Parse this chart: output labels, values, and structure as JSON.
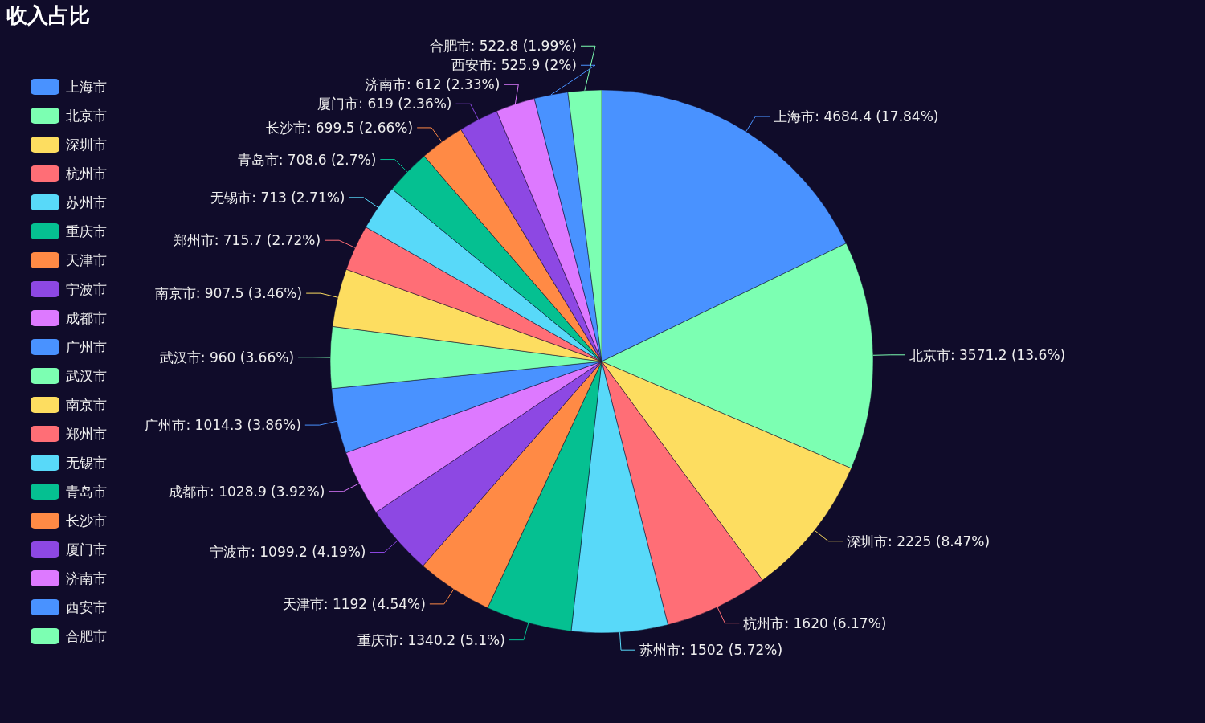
{
  "chart_data": {
    "type": "pie",
    "title": "收入占比",
    "legend": "left",
    "categories": [
      "上海市",
      "北京市",
      "深圳市",
      "杭州市",
      "苏州市",
      "重庆市",
      "天津市",
      "宁波市",
      "成都市",
      "广州市",
      "武汉市",
      "南京市",
      "郑州市",
      "无锡市",
      "青岛市",
      "长沙市",
      "厦门市",
      "济南市",
      "西安市",
      "合肥市"
    ],
    "values": [
      4684.4,
      3571.2,
      2225,
      1620,
      1502,
      1340.2,
      1192,
      1099.2,
      1028.9,
      1014.3,
      960,
      907.5,
      715.7,
      713,
      708.6,
      699.5,
      619,
      612,
      525.9,
      522.8
    ],
    "value_labels": [
      "上海市: 4684.4 (17.84%)",
      "北京市: 3571.2 (13.6%)",
      "深圳市: 2225 (8.47%)",
      "杭州市: 1620 (6.17%)",
      "苏州市: 1502 (5.72%)",
      "重庆市: 1340.2 (5.1%)",
      "天津市: 1192 (4.54%)",
      "宁波市: 1099.2 (4.19%)",
      "成都市: 1028.9 (3.92%)",
      "广州市: 1014.3 (3.86%)",
      "武汉市: 960 (3.66%)",
      "南京市: 907.5 (3.46%)",
      "郑州市: 715.7 (2.72%)",
      "无锡市: 713 (2.71%)",
      "青岛市: 708.6 (2.7%)",
      "长沙市: 699.5 (2.66%)",
      "厦门市: 619 (2.36%)",
      "济南市: 612 (2.33%)",
      "西安市: 525.9 (2%)",
      "合肥市: 522.8 (1.99%)"
    ],
    "colors": [
      "#4992ff",
      "#7cffb2",
      "#fddd60",
      "#ff6e76",
      "#58d9f9",
      "#05c091",
      "#ff8a45",
      "#8d48e3",
      "#dd79ff",
      "#4992ff",
      "#7cffb2",
      "#fddd60",
      "#ff6e76",
      "#58d9f9",
      "#05c091",
      "#ff8a45",
      "#8d48e3",
      "#dd79ff",
      "#4992ff",
      "#7cffb2"
    ]
  }
}
